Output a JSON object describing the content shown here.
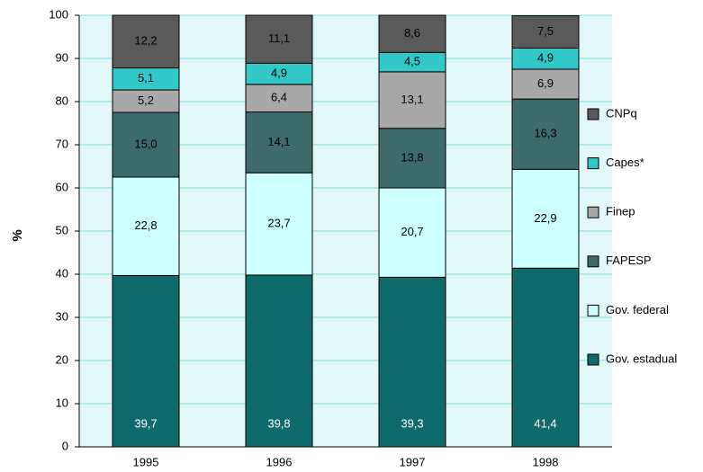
{
  "chart_data": {
    "type": "stacked-bar",
    "y_label": "%",
    "categories": [
      "1995",
      "1996",
      "1997",
      "1998"
    ],
    "series": [
      {
        "name": "Gov. estadual",
        "color": "#0f6a6a",
        "values": [
          39.7,
          39.8,
          39.3,
          41.4
        ],
        "value_labels": [
          "39,7",
          "39,8",
          "39,3",
          "41,4"
        ]
      },
      {
        "name": "Gov. federal",
        "color": "#ccffff",
        "values": [
          22.8,
          23.7,
          20.7,
          22.9
        ],
        "value_labels": [
          "22,8",
          "23,7",
          "20,7",
          "22,9"
        ]
      },
      {
        "name": "FAPESP",
        "color": "#3d6b6b",
        "values": [
          15.0,
          14.1,
          13.8,
          16.3
        ],
        "value_labels": [
          "15,0",
          "14,1",
          "13,8",
          "16,3"
        ]
      },
      {
        "name": "Finep",
        "color": "#a8a8a8",
        "values": [
          5.2,
          6.4,
          13.1,
          6.9
        ],
        "value_labels": [
          "5,2",
          "6,4",
          "13,1",
          "6,9"
        ]
      },
      {
        "name": "Capes*",
        "color": "#33c8c8",
        "values": [
          5.1,
          4.9,
          4.5,
          4.9
        ],
        "value_labels": [
          "5,1",
          "4,9",
          "4,5",
          "4,9"
        ]
      },
      {
        "name": "CNPq",
        "color": "#5a5a5a",
        "values": [
          12.2,
          11.1,
          8.6,
          7.5
        ],
        "value_labels": [
          "12,2",
          "11,1",
          "8,6",
          "7,5"
        ]
      }
    ],
    "ylim": [
      0,
      100
    ],
    "yticks": [
      0,
      10,
      20,
      30,
      40,
      50,
      60,
      70,
      80,
      90,
      100
    ],
    "grid": true,
    "legend": "right"
  }
}
